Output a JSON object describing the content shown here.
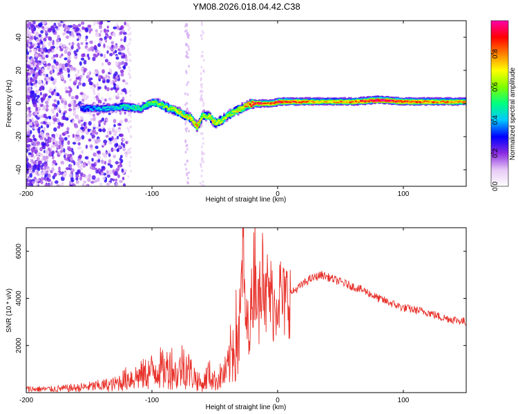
{
  "chart_data": [
    {
      "type": "heatmap",
      "title": "YM08.2026.018.04.42.C38",
      "xlabel": "Height of straight line (km)",
      "ylabel": "Frequency (Hz)",
      "xlim": [
        -200,
        150
      ],
      "ylim": [
        -50,
        50
      ],
      "xticks": [
        "-200",
        "-100",
        "0",
        "100"
      ],
      "yticks": [
        "-40",
        "-20",
        "0",
        "20",
        "40"
      ],
      "colorbar": {
        "label": "Normalized spectral amplitude",
        "range": [
          0,
          1
        ],
        "ticks": [
          "0.0",
          "0.2",
          "0.4",
          "0.6",
          "0.8"
        ],
        "colors": [
          "#ffffff",
          "#e6c8f5",
          "#8a2be2",
          "#0000ff",
          "#00c8ff",
          "#00ff80",
          "#80ff00",
          "#ffff00",
          "#ff8000",
          "#ff0000",
          "#ff00aa"
        ]
      },
      "ridge": {
        "x": [
          -155,
          -140,
          -125,
          -110,
          -100,
          -90,
          -80,
          -70,
          -65,
          -60,
          -55,
          -50,
          -45,
          -40,
          -35,
          -30,
          -25,
          -20,
          -15,
          -10,
          -5,
          0,
          10,
          20,
          40,
          60,
          80,
          100,
          120,
          150
        ],
        "freq": [
          -3,
          -3,
          -2,
          -3,
          1,
          -2,
          -5,
          -9,
          -14,
          -7,
          -8,
          -12,
          -10,
          -7,
          -5,
          -3,
          -1,
          0,
          0,
          0,
          0,
          1,
          1,
          1,
          1,
          1,
          2,
          1,
          1,
          1
        ],
        "amplitude": [
          0.35,
          0.4,
          0.45,
          0.5,
          0.55,
          0.6,
          0.65,
          0.7,
          0.75,
          0.6,
          0.65,
          0.7,
          0.65,
          0.6,
          0.65,
          0.7,
          0.75,
          0.85,
          0.9,
          0.8,
          0.85,
          0.9,
          0.85,
          0.8,
          0.7,
          0.8,
          0.95,
          0.85,
          0.8,
          0.75
        ]
      }
    },
    {
      "type": "line",
      "xlabel": "Height of straight line (km)",
      "ylabel": "SNR (10 * v/v)",
      "xlim": [
        -200,
        150
      ],
      "ylim": [
        0,
        7000
      ],
      "xticks": [
        "-200",
        "-100",
        "0",
        "100"
      ],
      "yticks": [
        "2000",
        "4000",
        "6000"
      ],
      "color": "#e8312a",
      "series": [
        {
          "name": "SNR",
          "x": [
            -200,
            -180,
            -160,
            -150,
            -140,
            -130,
            -120,
            -110,
            -100,
            -95,
            -90,
            -85,
            -80,
            -75,
            -70,
            -65,
            -60,
            -55,
            -50,
            -45,
            -40,
            -35,
            -30,
            -28,
            -25,
            -22,
            -20,
            -18,
            -15,
            -12,
            -10,
            -8,
            -5,
            -2,
            0,
            5,
            10,
            15,
            20,
            25,
            30,
            35,
            40,
            50,
            60,
            70,
            80,
            90,
            100,
            110,
            120,
            130,
            140,
            150
          ],
          "y": [
            150,
            150,
            200,
            250,
            300,
            350,
            600,
            700,
            900,
            1100,
            900,
            1200,
            700,
            1300,
            900,
            600,
            300,
            800,
            500,
            700,
            900,
            2200,
            2600,
            6000,
            2800,
            3000,
            4200,
            5800,
            3300,
            7000,
            3500,
            4400,
            4000,
            3600,
            4400,
            3800,
            4200,
            4400,
            4600,
            4800,
            4900,
            5000,
            4900,
            4700,
            4500,
            4300,
            4000,
            3800,
            3600,
            3500,
            3400,
            3200,
            3100,
            3000
          ]
        }
      ]
    }
  ]
}
